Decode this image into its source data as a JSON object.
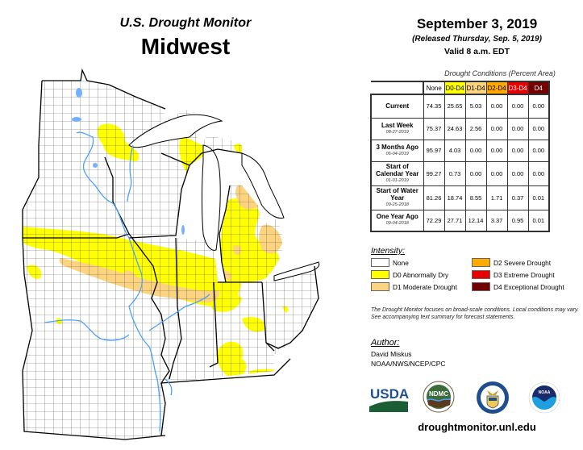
{
  "header": {
    "subtitle": "U.S. Drought Monitor",
    "region": "Midwest"
  },
  "date": {
    "main": "September 3, 2019",
    "released": "(Released Thursday, Sep. 5, 2019)",
    "valid": "Valid 8 a.m. EDT"
  },
  "table": {
    "caption": "Drought Conditions (Percent Area)",
    "columns": [
      {
        "label": "None",
        "bg": "#ffffff",
        "fg": "#000000"
      },
      {
        "label": "D0-D4",
        "bg": "#ffff00",
        "fg": "#000000"
      },
      {
        "label": "D1-D4",
        "bg": "#fcd37f",
        "fg": "#000000"
      },
      {
        "label": "D2-D4",
        "bg": "#ffaa00",
        "fg": "#000000"
      },
      {
        "label": "D3-D4",
        "bg": "#e60000",
        "fg": "#ffffff"
      },
      {
        "label": "D4",
        "bg": "#730000",
        "fg": "#ffffff"
      }
    ],
    "rows": [
      {
        "label": "Current",
        "date": "",
        "values": [
          "74.35",
          "25.65",
          "5.03",
          "0.00",
          "0.00",
          "0.00"
        ]
      },
      {
        "label": "Last Week",
        "date": "08-27-2019",
        "values": [
          "75.37",
          "24.63",
          "2.56",
          "0.00",
          "0.00",
          "0.00"
        ]
      },
      {
        "label": "3 Months Ago",
        "date": "06-04-2019",
        "values": [
          "95.97",
          "4.03",
          "0.00",
          "0.00",
          "0.00",
          "0.00"
        ]
      },
      {
        "label": "Start of Calendar Year",
        "date": "01-01-2019",
        "values": [
          "99.27",
          "0.73",
          "0.00",
          "0.00",
          "0.00",
          "0.00"
        ]
      },
      {
        "label": "Start of Water Year",
        "date": "09-25-2018",
        "values": [
          "81.26",
          "18.74",
          "8.55",
          "1.71",
          "0.37",
          "0.01"
        ]
      },
      {
        "label": "One Year Ago",
        "date": "09-04-2018",
        "values": [
          "72.29",
          "27.71",
          "12.14",
          "3.37",
          "0.95",
          "0.01"
        ]
      }
    ]
  },
  "intensity": {
    "title": "Intensity:",
    "items": [
      {
        "label": "None",
        "color": "#ffffff"
      },
      {
        "label": "D2 Severe Drought",
        "color": "#ffaa00"
      },
      {
        "label": "D0 Abnormally Dry",
        "color": "#ffff00"
      },
      {
        "label": "D3 Extreme Drought",
        "color": "#e60000"
      },
      {
        "label": "D1 Moderate Drought",
        "color": "#fcd37f"
      },
      {
        "label": "D4 Exceptional Drought",
        "color": "#730000"
      }
    ]
  },
  "note": "The Drought Monitor focuses on broad-scale conditions. Local conditions may vary. See accompanying text summary for forecast statements.",
  "author": {
    "title": "Author:",
    "name": "David Miskus",
    "org": "NOAA/NWS/NCEP/CPC"
  },
  "logos": [
    {
      "name": "USDA",
      "text": "USDA"
    },
    {
      "name": "NDMC",
      "text": "NDMC"
    },
    {
      "name": "Department of Commerce",
      "text": ""
    },
    {
      "name": "NOAA",
      "text": "NOAA"
    }
  ],
  "site_url": "droughtmonitor.unl.edu",
  "map": {
    "colors": {
      "d0": "#ffff00",
      "d1": "#fcd37f",
      "water": "#73b2ff",
      "county_line": "#555555",
      "state_line": "#000000"
    }
  }
}
